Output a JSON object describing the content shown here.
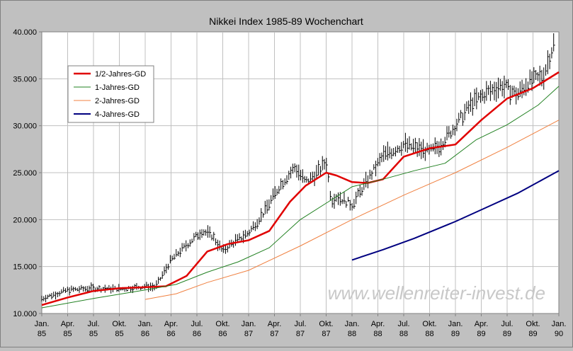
{
  "chart_data": {
    "type": "line",
    "title": "Nikkei Index 1985-89 Wochenchart",
    "watermark": "www.wellenreiter-invest.de",
    "ylim": [
      10000,
      40000
    ],
    "xlim": [
      1985.0,
      1990.0
    ],
    "y_ticks": [
      "10.000",
      "15.000",
      "20.000",
      "25.000",
      "30.000",
      "35.000",
      "40.000"
    ],
    "x_ticks": [
      {
        "month": "Jan.",
        "year": "85"
      },
      {
        "month": "Apr.",
        "year": "85"
      },
      {
        "month": "Jul.",
        "year": "85"
      },
      {
        "month": "Okt.",
        "year": "85"
      },
      {
        "month": "Jan.",
        "year": "86"
      },
      {
        "month": "Apr.",
        "year": "86"
      },
      {
        "month": "Jul.",
        "year": "86"
      },
      {
        "month": "Okt.",
        "year": "86"
      },
      {
        "month": "Jan.",
        "year": "87"
      },
      {
        "month": "Apr.",
        "year": "87"
      },
      {
        "month": "Jul.",
        "year": "87"
      },
      {
        "month": "Okt.",
        "year": "87"
      },
      {
        "month": "Jan.",
        "year": "88"
      },
      {
        "month": "Apr.",
        "year": "88"
      },
      {
        "month": "Jul.",
        "year": "88"
      },
      {
        "month": "Okt.",
        "year": "88"
      },
      {
        "month": "Jan.",
        "year": "89"
      },
      {
        "month": "Apr.",
        "year": "89"
      },
      {
        "month": "Jul.",
        "year": "89"
      },
      {
        "month": "Okt.",
        "year": "89"
      },
      {
        "month": "Jan.",
        "year": "90"
      }
    ],
    "grid": true,
    "legend_position": "top-left",
    "price": {
      "x": [
        1985.0,
        1985.25,
        1985.5,
        1985.75,
        1986.0,
        1986.1,
        1986.25,
        1986.4,
        1986.55,
        1986.65,
        1986.75,
        1986.83,
        1987.0,
        1987.15,
        1987.3,
        1987.45,
        1987.55,
        1987.65,
        1987.75,
        1987.8,
        1987.85,
        1987.95,
        1988.0,
        1988.15,
        1988.3,
        1988.5,
        1988.75,
        1988.85,
        1989.0,
        1989.15,
        1989.3,
        1989.45,
        1989.6,
        1989.7,
        1989.85,
        1989.95
      ],
      "y": [
        11600,
        12500,
        12700,
        12600,
        12900,
        12800,
        15700,
        17300,
        18800,
        18300,
        16600,
        17400,
        18600,
        20800,
        23600,
        25600,
        24000,
        24800,
        26200,
        22000,
        22500,
        21900,
        21600,
        24200,
        26800,
        28000,
        27200,
        27900,
        30000,
        32300,
        33500,
        34300,
        33300,
        34600,
        35300,
        38700
      ]
    },
    "series": [
      {
        "name": "1/2-Jahres-GD",
        "color": "#e00000",
        "x": [
          1985.0,
          1985.25,
          1985.5,
          1985.75,
          1986.0,
          1986.2,
          1986.4,
          1986.6,
          1986.8,
          1987.0,
          1987.2,
          1987.4,
          1987.55,
          1987.75,
          1987.85,
          1988.0,
          1988.15,
          1988.3,
          1988.5,
          1988.75,
          1989.0,
          1989.25,
          1989.5,
          1989.75,
          1990.0
        ],
        "y": [
          10900,
          11700,
          12400,
          12700,
          12800,
          12900,
          14000,
          16600,
          17400,
          17800,
          18800,
          21900,
          23600,
          25000,
          24700,
          24000,
          23900,
          24300,
          26700,
          27600,
          28000,
          30600,
          32900,
          34000,
          35700
        ]
      },
      {
        "name": "1-Jahres-GD",
        "color": "#208020",
        "x": [
          1985.0,
          1985.5,
          1986.0,
          1986.3,
          1986.6,
          1986.9,
          1987.2,
          1987.5,
          1987.8,
          1988.0,
          1988.3,
          1988.6,
          1988.9,
          1989.2,
          1989.5,
          1989.8,
          1990.0
        ],
        "y": [
          10600,
          11600,
          12500,
          13100,
          14400,
          15500,
          17000,
          20000,
          22100,
          23500,
          24300,
          25200,
          26000,
          28500,
          30100,
          32200,
          34200
        ]
      },
      {
        "name": "2-Jahres-GD",
        "color": "#f08040",
        "x": [
          1986.0,
          1986.3,
          1986.6,
          1987.0,
          1987.5,
          1988.0,
          1988.5,
          1989.0,
          1989.5,
          1990.0
        ],
        "y": [
          11500,
          12100,
          13300,
          14600,
          17200,
          20000,
          22600,
          25000,
          27700,
          30600
        ]
      },
      {
        "name": "4-Jahres-GD",
        "color": "#000080",
        "x": [
          1988.0,
          1988.3,
          1988.6,
          1989.0,
          1989.3,
          1989.6,
          1990.0
        ],
        "y": [
          15700,
          16800,
          18000,
          19800,
          21300,
          22800,
          25200
        ]
      }
    ]
  }
}
